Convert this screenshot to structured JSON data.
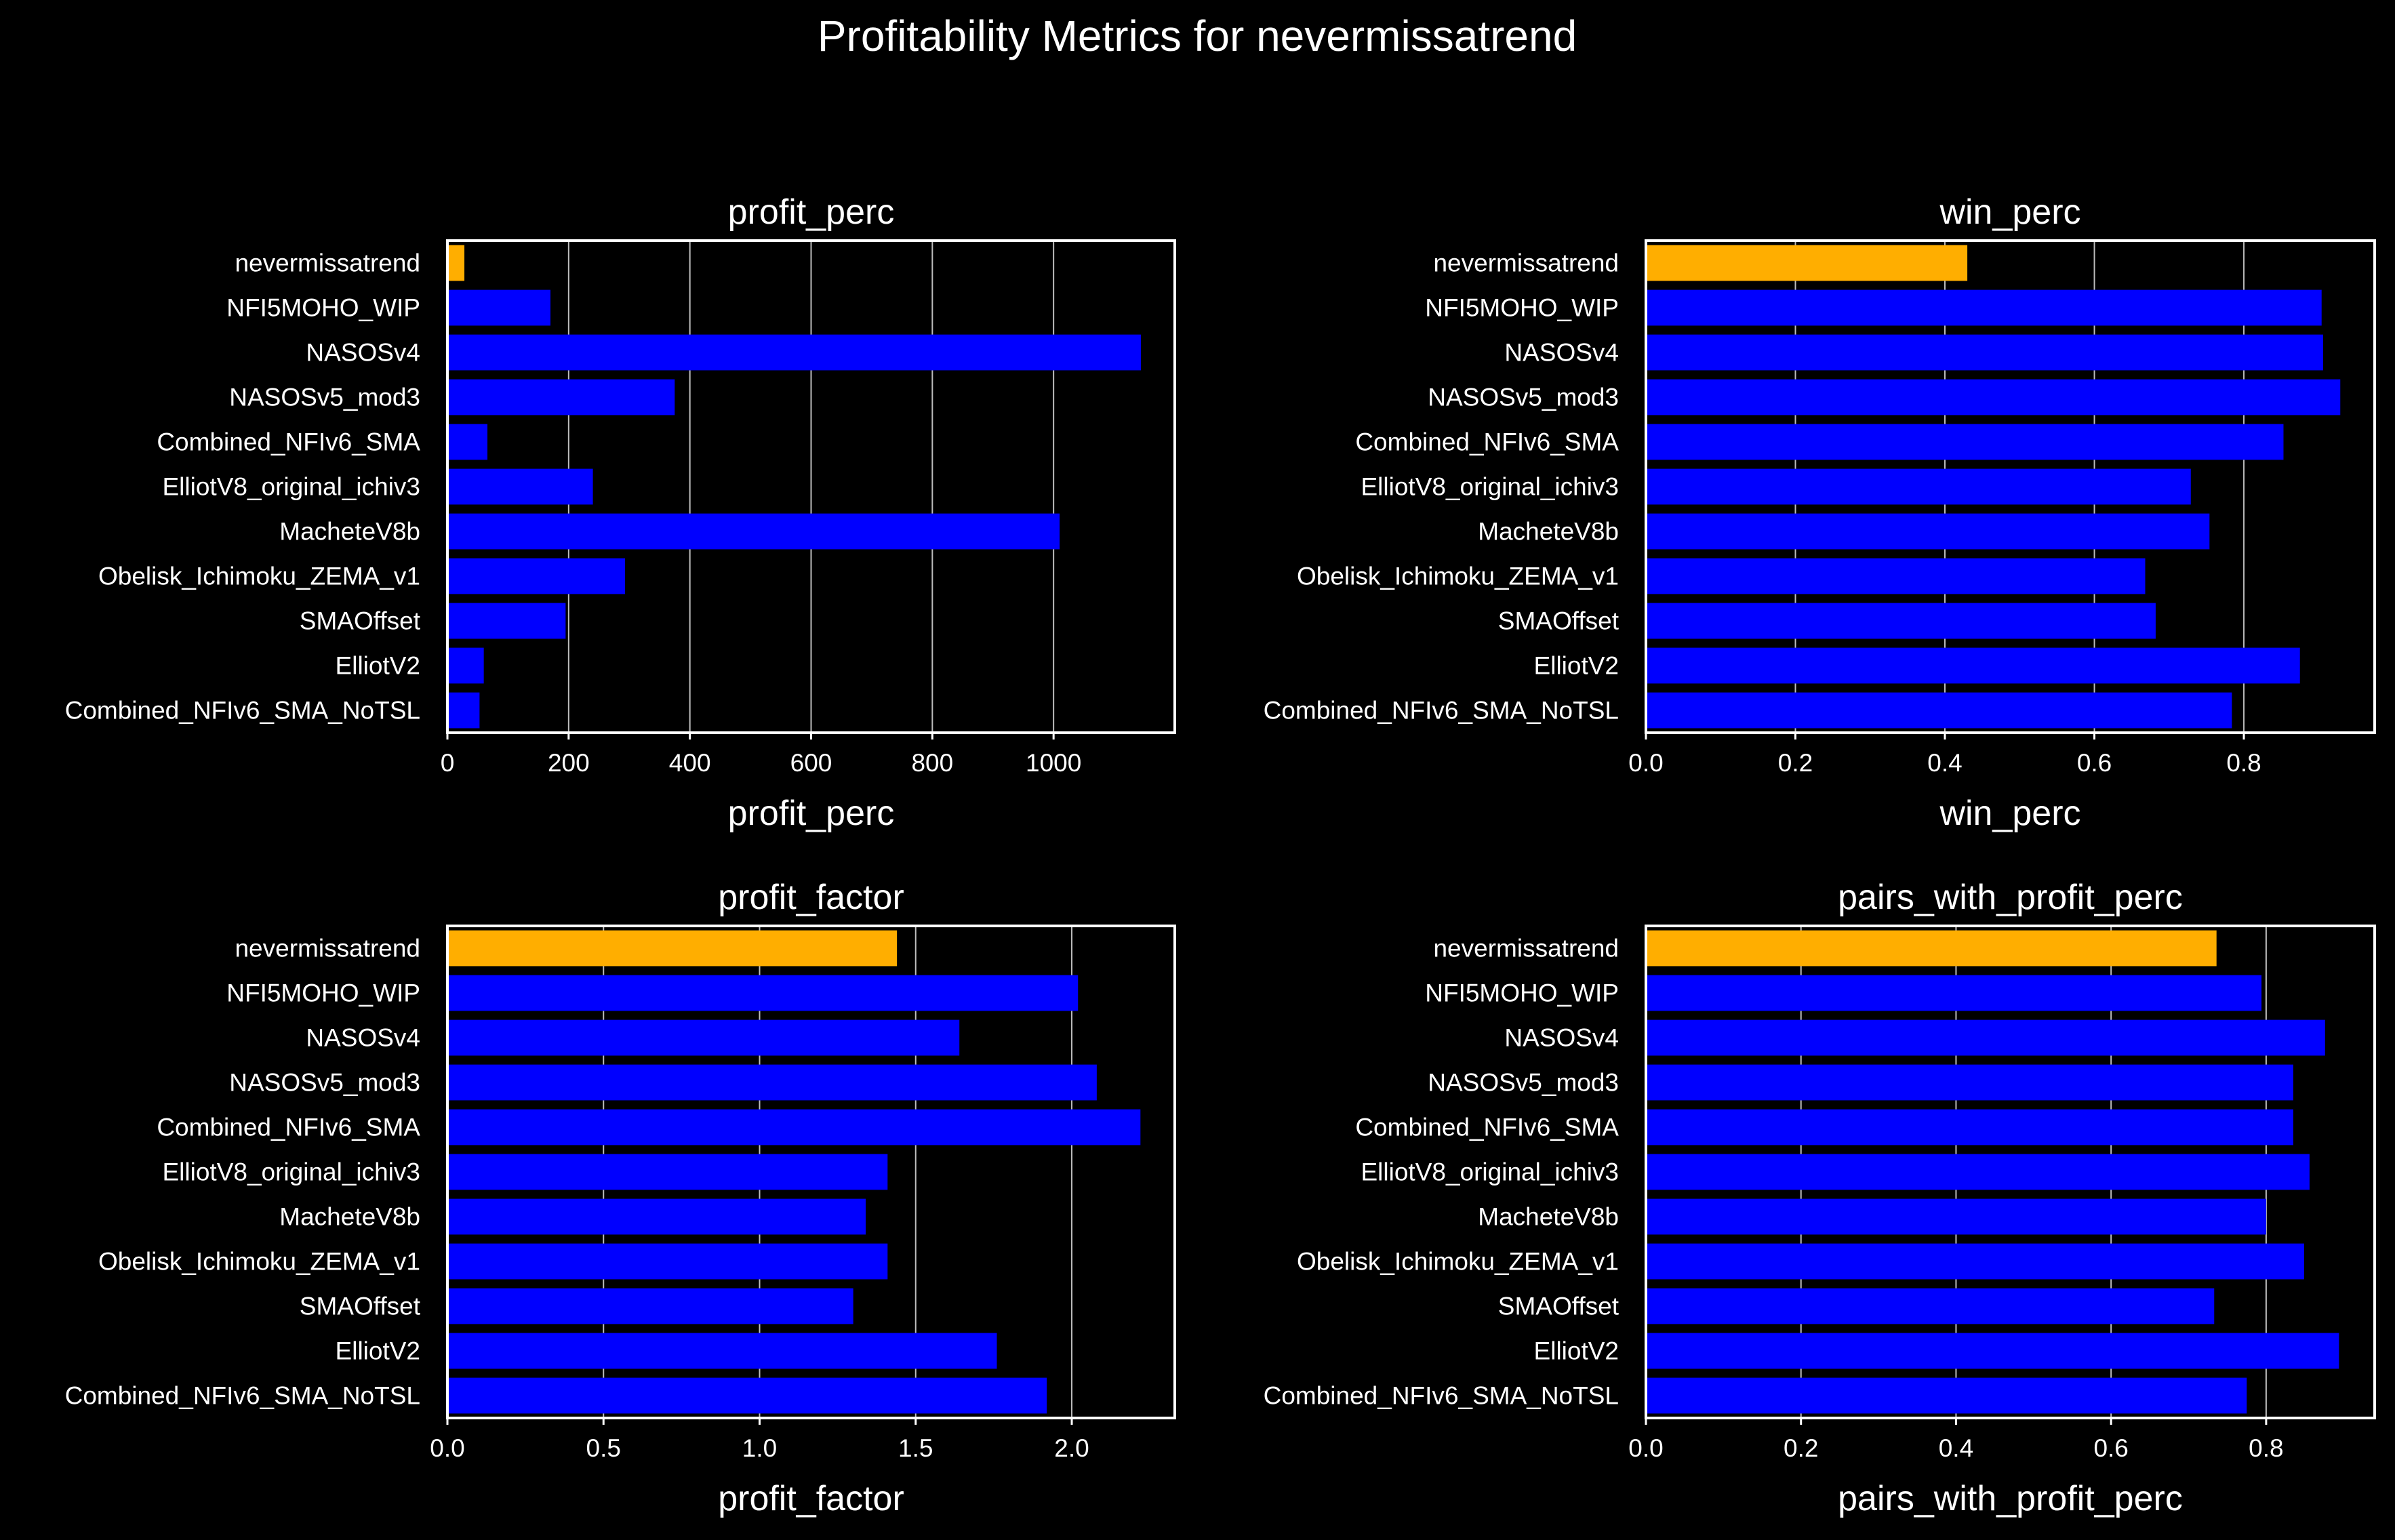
{
  "figure": {
    "title": "Profitability Metrics for nevermissatrend",
    "background": "#000000",
    "highlight_color": "#FFAE00",
    "bar_color": "#0000FF",
    "axes_color": "#FFFFFF"
  },
  "chart_data": [
    {
      "type": "bar",
      "orientation": "horizontal",
      "title": "profit_perc",
      "xlabel": "profit_perc",
      "ylabel": "",
      "xlim": [
        0,
        1200
      ],
      "xticks": [
        "0",
        "200",
        "400",
        "600",
        "800",
        "1000"
      ],
      "xtick_values": [
        0,
        200,
        400,
        600,
        800,
        1000
      ],
      "grid": "vertical",
      "categories": [
        "nevermissatrend",
        "NFI5MOHO_WIP",
        "NASOSv4",
        "NASOSv5_mod3",
        "Combined_NFIv6_SMA",
        "ElliotV8_original_ichiv3",
        "MacheteV8b",
        "Obelisk_Ichimoku_ZEMA_v1",
        "SMAOffset",
        "ElliotV2",
        "Combined_NFIv6_SMA_NoTSL"
      ],
      "values": [
        28,
        170,
        1144,
        375,
        66,
        240,
        1010,
        293,
        195,
        60,
        53
      ],
      "highlight": "nevermissatrend"
    },
    {
      "type": "bar",
      "orientation": "horizontal",
      "title": "win_perc",
      "xlabel": "win_perc",
      "ylabel": "",
      "xlim": [
        0,
        0.975
      ],
      "xticks": [
        "0.0",
        "0.2",
        "0.4",
        "0.6",
        "0.8"
      ],
      "xtick_values": [
        0,
        0.2,
        0.4,
        0.6,
        0.8
      ],
      "grid": "vertical",
      "categories": [
        "nevermissatrend",
        "NFI5MOHO_WIP",
        "NASOSv4",
        "NASOSv5_mod3",
        "Combined_NFIv6_SMA",
        "ElliotV8_original_ichiv3",
        "MacheteV8b",
        "Obelisk_Ichimoku_ZEMA_v1",
        "SMAOffset",
        "ElliotV2",
        "Combined_NFIv6_SMA_NoTSL"
      ],
      "values": [
        0.43,
        0.904,
        0.906,
        0.929,
        0.853,
        0.729,
        0.754,
        0.668,
        0.682,
        0.875,
        0.784
      ],
      "highlight": "nevermissatrend"
    },
    {
      "type": "bar",
      "orientation": "horizontal",
      "title": "profit_factor",
      "xlabel": "profit_factor",
      "ylabel": "",
      "xlim": [
        0,
        2.33
      ],
      "xticks": [
        "0.0",
        "0.5",
        "1.0",
        "1.5",
        "2.0"
      ],
      "xtick_values": [
        0,
        0.5,
        1.0,
        1.5,
        2.0
      ],
      "grid": "vertical",
      "categories": [
        "nevermissatrend",
        "NFI5MOHO_WIP",
        "NASOSv4",
        "NASOSv5_mod3",
        "Combined_NFIv6_SMA",
        "ElliotV8_original_ichiv3",
        "MacheteV8b",
        "Obelisk_Ichimoku_ZEMA_v1",
        "SMAOffset",
        "ElliotV2",
        "Combined_NFIv6_SMA_NoTSL"
      ],
      "values": [
        1.44,
        2.02,
        1.64,
        2.08,
        2.22,
        1.41,
        1.34,
        1.41,
        1.3,
        1.76,
        1.92
      ],
      "highlight": "nevermissatrend"
    },
    {
      "type": "bar",
      "orientation": "horizontal",
      "title": "pairs_with_profit_perc",
      "xlabel": "pairs_with_profit_perc",
      "ylabel": "",
      "xlim": [
        0,
        0.94
      ],
      "xticks": [
        "0.0",
        "0.2",
        "0.4",
        "0.6",
        "0.8"
      ],
      "xtick_values": [
        0,
        0.2,
        0.4,
        0.6,
        0.8
      ],
      "grid": "vertical",
      "categories": [
        "nevermissatrend",
        "NFI5MOHO_WIP",
        "NASOSv4",
        "NASOSv5_mod3",
        "Combined_NFIv6_SMA",
        "ElliotV8_original_ichiv3",
        "MacheteV8b",
        "Obelisk_Ichimoku_ZEMA_v1",
        "SMAOffset",
        "ElliotV2",
        "Combined_NFIv6_SMA_NoTSL"
      ],
      "values": [
        0.736,
        0.794,
        0.876,
        0.835,
        0.835,
        0.856,
        0.8,
        0.849,
        0.733,
        0.894,
        0.775
      ],
      "highlight": "nevermissatrend"
    }
  ]
}
